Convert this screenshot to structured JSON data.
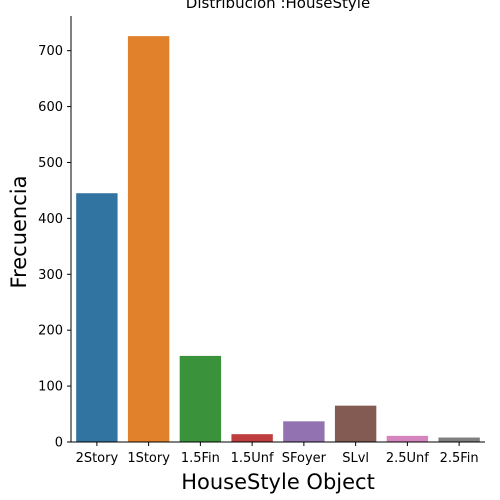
{
  "chart_data": {
    "type": "bar",
    "title": "Distribución :HouseStyle",
    "xlabel": "HouseStyle Object",
    "ylabel": "Frecuencia",
    "categories": [
      "2Story",
      "1Story",
      "1.5Fin",
      "1.5Unf",
      "SFoyer",
      "SLvl",
      "2.5Unf",
      "2.5Fin"
    ],
    "values": [
      445,
      726,
      154,
      14,
      37,
      65,
      11,
      8
    ],
    "colors": [
      "#3274a1",
      "#e1812c",
      "#3a923a",
      "#c03d3e",
      "#9372b2",
      "#845b53",
      "#d684bd",
      "#7f7f7f"
    ],
    "yticks": [
      0,
      100,
      200,
      300,
      400,
      500,
      600,
      700
    ],
    "ylim": [
      0,
      762
    ],
    "grid": false
  }
}
